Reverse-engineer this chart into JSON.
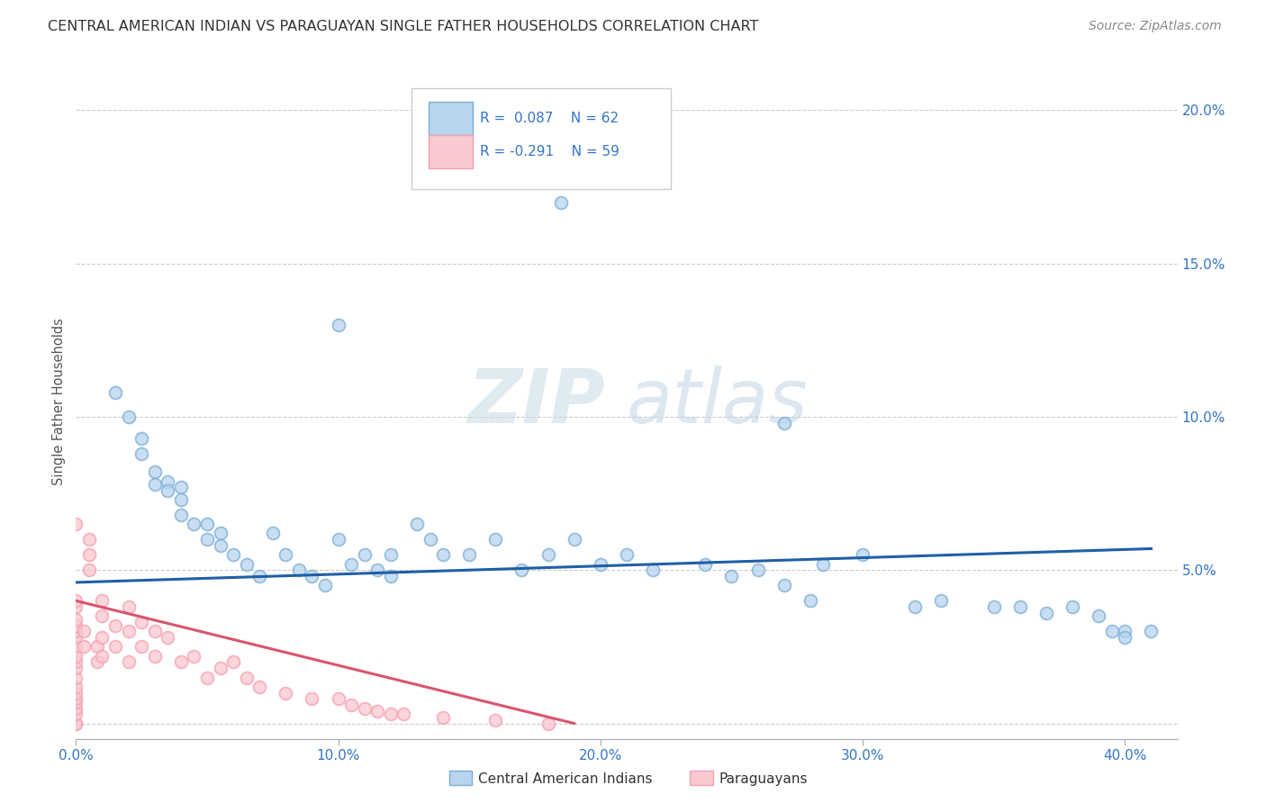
{
  "title": "CENTRAL AMERICAN INDIAN VS PARAGUAYAN SINGLE FATHER HOUSEHOLDS CORRELATION CHART",
  "source": "Source: ZipAtlas.com",
  "ylabel": "Single Father Households",
  "ytick_values": [
    0.0,
    0.05,
    0.1,
    0.15,
    0.2
  ],
  "xlim": [
    0.0,
    0.42
  ],
  "ylim": [
    -0.005,
    0.215
  ],
  "blue_color": "#7aadd4",
  "pink_color": "#f4a0b0",
  "trend_blue_color": "#1f5fa6",
  "trend_pink_color": "#d9556e",
  "background_color": "#ffffff",
  "grid_color": "#cccccc",
  "blue_scatter_x": [
    0.015,
    0.02,
    0.025,
    0.025,
    0.03,
    0.03,
    0.035,
    0.035,
    0.04,
    0.04,
    0.04,
    0.045,
    0.05,
    0.05,
    0.055,
    0.055,
    0.06,
    0.065,
    0.07,
    0.075,
    0.08,
    0.085,
    0.09,
    0.095,
    0.1,
    0.1,
    0.105,
    0.11,
    0.115,
    0.12,
    0.12,
    0.13,
    0.135,
    0.14,
    0.15,
    0.16,
    0.17,
    0.18,
    0.19,
    0.2,
    0.21,
    0.22,
    0.24,
    0.25,
    0.26,
    0.27,
    0.28,
    0.3,
    0.32,
    0.33,
    0.35,
    0.36,
    0.37,
    0.38,
    0.39,
    0.4,
    0.4,
    0.41,
    0.185,
    0.27,
    0.285,
    0.395
  ],
  "blue_scatter_y": [
    0.108,
    0.1,
    0.093,
    0.088,
    0.082,
    0.078,
    0.079,
    0.076,
    0.077,
    0.073,
    0.068,
    0.065,
    0.065,
    0.06,
    0.062,
    0.058,
    0.055,
    0.052,
    0.048,
    0.062,
    0.055,
    0.05,
    0.048,
    0.045,
    0.13,
    0.06,
    0.052,
    0.055,
    0.05,
    0.055,
    0.048,
    0.065,
    0.06,
    0.055,
    0.055,
    0.06,
    0.05,
    0.055,
    0.06,
    0.052,
    0.055,
    0.05,
    0.052,
    0.048,
    0.05,
    0.045,
    0.04,
    0.055,
    0.038,
    0.04,
    0.038,
    0.038,
    0.036,
    0.038,
    0.035,
    0.03,
    0.028,
    0.03,
    0.17,
    0.098,
    0.052,
    0.03
  ],
  "pink_scatter_x": [
    0.0,
    0.0,
    0.0,
    0.0,
    0.0,
    0.0,
    0.0,
    0.0,
    0.0,
    0.0,
    0.0,
    0.0,
    0.0,
    0.0,
    0.0,
    0.0,
    0.0,
    0.0,
    0.0,
    0.0,
    0.003,
    0.003,
    0.005,
    0.005,
    0.005,
    0.008,
    0.008,
    0.01,
    0.01,
    0.01,
    0.01,
    0.015,
    0.015,
    0.02,
    0.02,
    0.02,
    0.025,
    0.025,
    0.03,
    0.03,
    0.035,
    0.04,
    0.045,
    0.05,
    0.055,
    0.06,
    0.065,
    0.07,
    0.08,
    0.09,
    0.1,
    0.105,
    0.11,
    0.115,
    0.12,
    0.125,
    0.14,
    0.16,
    0.18
  ],
  "pink_scatter_y": [
    0.0,
    0.0,
    0.003,
    0.005,
    0.007,
    0.008,
    0.01,
    0.012,
    0.015,
    0.018,
    0.02,
    0.022,
    0.025,
    0.028,
    0.03,
    0.032,
    0.034,
    0.038,
    0.04,
    0.065,
    0.03,
    0.025,
    0.06,
    0.055,
    0.05,
    0.025,
    0.02,
    0.04,
    0.035,
    0.028,
    0.022,
    0.032,
    0.025,
    0.038,
    0.03,
    0.02,
    0.033,
    0.025,
    0.03,
    0.022,
    0.028,
    0.02,
    0.022,
    0.015,
    0.018,
    0.02,
    0.015,
    0.012,
    0.01,
    0.008,
    0.008,
    0.006,
    0.005,
    0.004,
    0.003,
    0.003,
    0.002,
    0.001,
    0.0
  ],
  "blue_trend_x": [
    0.0,
    0.41
  ],
  "blue_trend_y": [
    0.046,
    0.057
  ],
  "pink_trend_x": [
    0.0,
    0.19
  ],
  "pink_trend_y": [
    0.04,
    0.0
  ],
  "watermark_zip": "ZIP",
  "watermark_atlas": "atlas",
  "marker_size": 100,
  "marker_linewidth": 1.3
}
